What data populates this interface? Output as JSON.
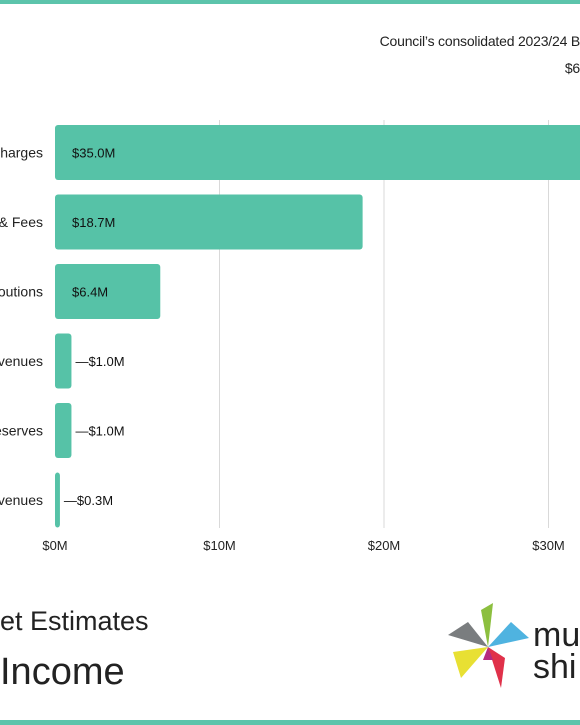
{
  "header": {
    "line1": "Council’s consolidated 2023/24 B",
    "line2": "$6"
  },
  "chart_data": {
    "type": "bar",
    "orientation": "horizontal",
    "categories": [
      "harges",
      "& Fees",
      "outions",
      "venues",
      "eserves",
      "venues"
    ],
    "values": [
      35.0,
      18.7,
      6.4,
      1.0,
      1.0,
      0.3
    ],
    "value_labels": [
      "$35.0M",
      "$18.7M",
      "$6.4M",
      "—$1.0M",
      "—$1.0M",
      "—$0.3M"
    ],
    "x_ticks": [
      0,
      10,
      20,
      30
    ],
    "x_tick_labels": [
      "$0M",
      "$10M",
      "$20M",
      "$30M"
    ],
    "grid": true,
    "bar_color": "#56c2a7"
  },
  "footer": {
    "title_line1": "et Estimates",
    "title_line2": "Income"
  },
  "logo": {
    "text_line1": "mu",
    "text_line2": "shi",
    "colors": [
      "#7a7d7f",
      "#8cbf3f",
      "#4fb3e0",
      "#e8e033",
      "#e0314a",
      "#b52a7f",
      "#a9abad"
    ]
  }
}
